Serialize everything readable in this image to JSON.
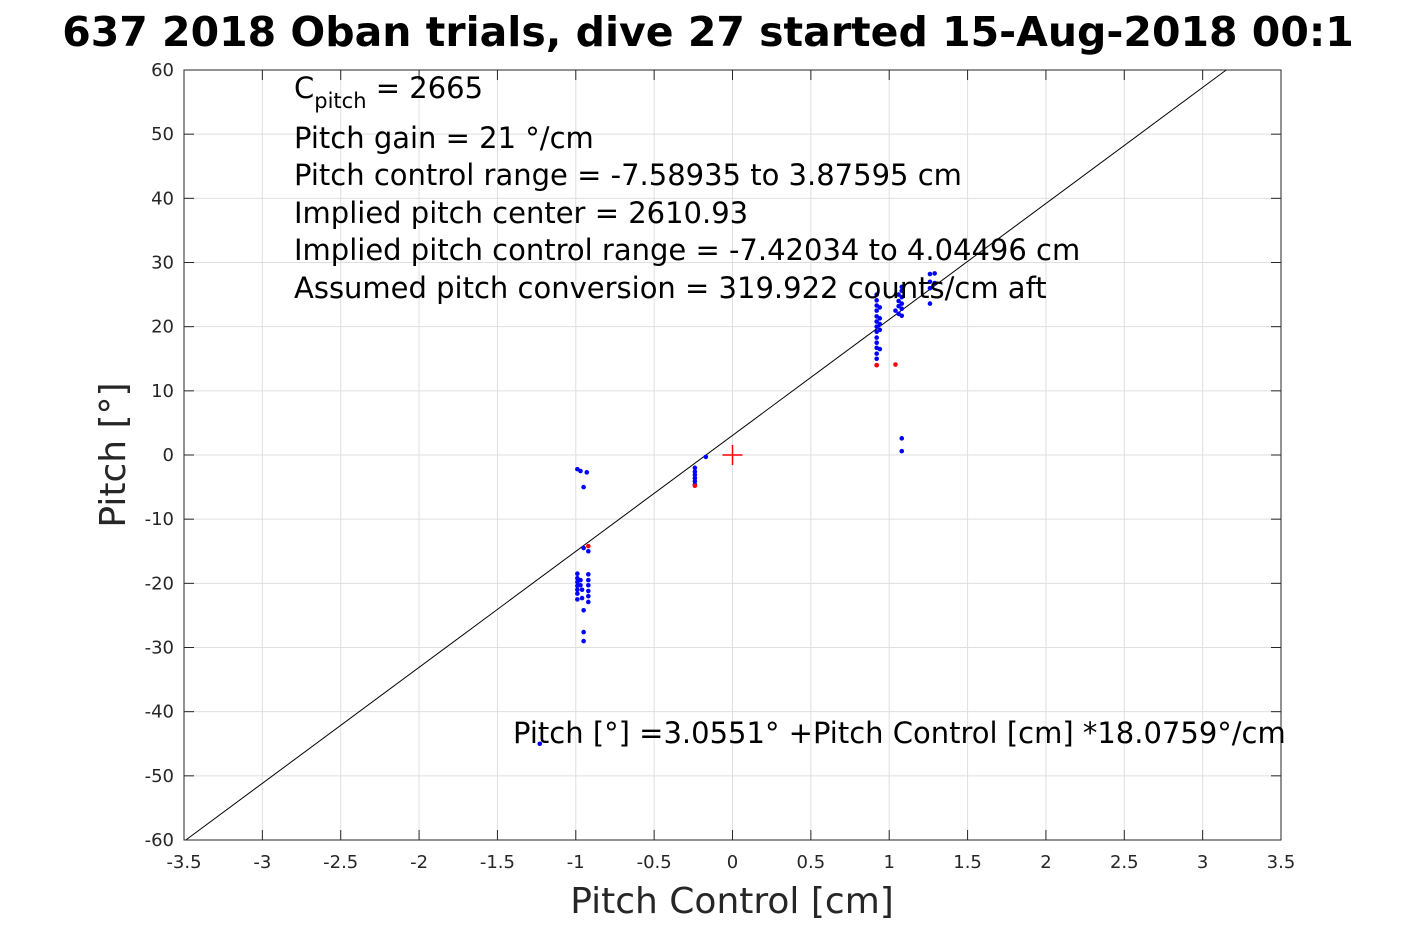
{
  "chart_data": {
    "type": "scatter",
    "title": "637 2018 Oban trials, dive 27 started 15-Aug-2018 00:1",
    "xlabel": "Pitch Control [cm]",
    "ylabel": "Pitch [°]",
    "xlim": [
      -3.5,
      3.5
    ],
    "ylim": [
      -60,
      60
    ],
    "x_ticks": [
      -3.5,
      -3,
      -2.5,
      -2,
      -1.5,
      -1,
      -0.5,
      0,
      0.5,
      1,
      1.5,
      2,
      2.5,
      3,
      3.5
    ],
    "x_tick_labels": [
      "-3.5",
      "-3",
      "-2.5",
      "-2",
      "-1.5",
      "-1",
      "-0.5",
      "0",
      "0.5",
      "1",
      "1.5",
      "2",
      "2.5",
      "3",
      "3.5"
    ],
    "y_ticks": [
      -60,
      -50,
      -40,
      -30,
      -20,
      -10,
      0,
      10,
      20,
      30,
      40,
      50,
      60
    ],
    "y_tick_labels": [
      "-60",
      "-50",
      "-40",
      "-30",
      "-20",
      "-10",
      "0",
      "10",
      "20",
      "30",
      "40",
      "50",
      "60"
    ],
    "grid": true,
    "annotations": {
      "c_pitch_main": "C",
      "c_pitch_sub": "pitch",
      "c_pitch_value": " = 2665",
      "pitch_gain": "Pitch gain = 21 °/cm",
      "pitch_control_range": "Pitch control range = -7.58935 to 3.87595 cm",
      "implied_pitch_center": "Implied pitch center = 2610.93",
      "implied_pitch_control_range": "Implied pitch control range = -7.42034 to 4.04496 cm",
      "assumed_pitch_conversion": "Assumed pitch conversion = 319.922 counts/cm aft",
      "fit_equation": "Pitch [°] =3.0551° +Pitch Control [cm] *18.0759°/cm"
    },
    "fit_line": {
      "intercept": 3.0551,
      "slope": 18.0759,
      "color": "#000000"
    },
    "center_marker": {
      "x": 0,
      "y": 0,
      "color": "#ff0000"
    },
    "series": [
      {
        "color": "#0000ff",
        "points": [
          [
            -0.99,
            -2.2
          ],
          [
            -0.97,
            -2.5
          ],
          [
            -0.93,
            -2.7
          ],
          [
            -0.95,
            -5.0
          ],
          [
            -0.99,
            -18.5
          ],
          [
            -0.99,
            -19.2
          ],
          [
            -0.99,
            -19.8
          ],
          [
            -0.99,
            -20.4
          ],
          [
            -0.99,
            -21.0
          ],
          [
            -0.99,
            -21.6
          ],
          [
            -0.99,
            -22.5
          ],
          [
            -0.97,
            -19.5
          ],
          [
            -0.97,
            -20.3
          ],
          [
            -0.96,
            -21.0
          ],
          [
            -0.96,
            -22.3
          ],
          [
            -0.95,
            -14.5
          ],
          [
            -0.95,
            -24.2
          ],
          [
            -0.95,
            -27.6
          ],
          [
            -0.95,
            -29.0
          ],
          [
            -0.92,
            -15.0
          ],
          [
            -0.92,
            -18.6
          ],
          [
            -0.92,
            -19.5
          ],
          [
            -0.92,
            -20.3
          ],
          [
            -0.92,
            -21.2
          ],
          [
            -0.92,
            -22.0
          ],
          [
            -0.92,
            -22.9
          ],
          [
            -0.24,
            -2.0
          ],
          [
            -0.24,
            -2.6
          ],
          [
            -0.24,
            -3.1
          ],
          [
            -0.24,
            -3.6
          ],
          [
            -0.24,
            -4.1
          ],
          [
            -0.24,
            -4.6
          ],
          [
            -0.17,
            -0.3
          ],
          [
            0.92,
            14.0
          ],
          [
            0.92,
            15.0
          ],
          [
            0.92,
            15.8
          ],
          [
            0.92,
            16.7
          ],
          [
            0.92,
            17.5
          ],
          [
            0.92,
            18.3
          ],
          [
            0.92,
            19.2
          ],
          [
            0.92,
            20.0
          ],
          [
            0.92,
            20.8
          ],
          [
            0.92,
            21.6
          ],
          [
            0.92,
            22.5
          ],
          [
            0.92,
            23.3
          ],
          [
            0.92,
            24.1
          ],
          [
            0.92,
            25.0
          ],
          [
            0.94,
            16.5
          ],
          [
            0.94,
            19.5
          ],
          [
            0.94,
            20.4
          ],
          [
            0.94,
            21.3
          ],
          [
            0.94,
            23.0
          ],
          [
            1.04,
            22.5
          ],
          [
            1.06,
            22.0
          ],
          [
            1.06,
            23.2
          ],
          [
            1.06,
            24.0
          ],
          [
            1.06,
            25.0
          ],
          [
            1.08,
            21.7
          ],
          [
            1.08,
            22.8
          ],
          [
            1.08,
            23.6
          ],
          [
            1.08,
            24.6
          ],
          [
            1.08,
            25.6
          ],
          [
            1.08,
            26.2
          ],
          [
            1.08,
            2.6
          ],
          [
            1.08,
            0.6
          ],
          [
            1.26,
            23.6
          ],
          [
            1.26,
            26.0
          ],
          [
            1.26,
            27.0
          ],
          [
            1.26,
            28.2
          ],
          [
            1.29,
            26.8
          ],
          [
            1.29,
            28.3
          ],
          [
            -1.23,
            -45.0
          ]
        ]
      },
      {
        "color": "#ff0000",
        "points": [
          [
            -0.92,
            -14.2
          ],
          [
            -0.24,
            -4.8
          ],
          [
            0.92,
            14.0
          ],
          [
            1.04,
            14.1
          ]
        ]
      }
    ]
  }
}
